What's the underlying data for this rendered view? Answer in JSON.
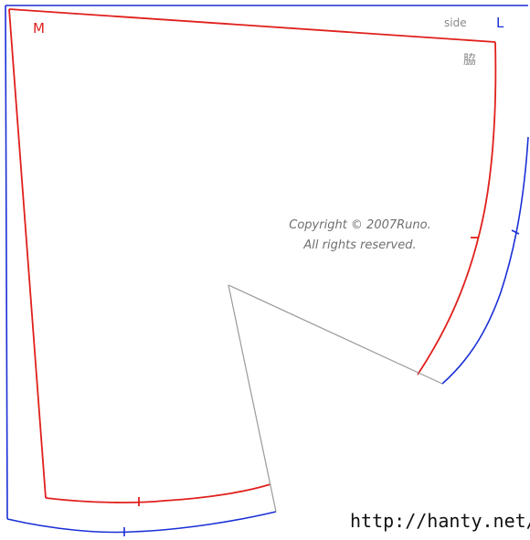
{
  "labels": {
    "size_m": "M",
    "size_l": "L",
    "side_en": "side",
    "side_ja": "脇"
  },
  "copyright": {
    "line1": "Copyright © 2007Runo.",
    "line2": "All rights reserved."
  },
  "url": "http://hanty.net/",
  "colors": {
    "size_m": "#e0201c",
    "size_l": "#1a2fd6",
    "dart": "#9a9a9a",
    "text_gray": "#8a8a8a"
  }
}
